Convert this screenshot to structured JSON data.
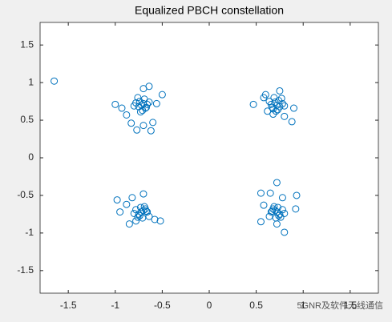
{
  "chart_data": {
    "type": "scatter",
    "title": "Equalized PBCH constellation",
    "watermark": "5GNR及软件无线通信",
    "xlim": [
      -1.8,
      1.8
    ],
    "ylim": [
      -1.8,
      1.8
    ],
    "xticks": [
      -1.5,
      -1,
      -0.5,
      0,
      0.5,
      1,
      1.5
    ],
    "yticks": [
      -1.5,
      -1,
      -0.5,
      0,
      0.5,
      1,
      1.5
    ],
    "marker": "circle-open",
    "color": "#0072bd",
    "x": [
      -0.72,
      -0.7,
      -0.75,
      -0.68,
      -0.74,
      -0.66,
      -0.78,
      -0.71,
      -0.69,
      -0.8,
      -0.64,
      -0.73,
      -0.76,
      -0.67,
      -1.0,
      -0.93,
      -0.88,
      -0.83,
      -0.77,
      -0.7,
      -0.62,
      -0.6,
      -0.64,
      -0.7,
      -0.5,
      -0.56,
      0.72,
      0.7,
      0.75,
      0.68,
      0.74,
      0.66,
      0.78,
      0.71,
      0.69,
      0.8,
      0.64,
      0.73,
      0.77,
      0.67,
      0.58,
      0.6,
      0.47,
      0.9,
      0.88,
      0.8,
      0.75,
      0.68,
      0.62,
      -0.72,
      -0.7,
      -0.75,
      -0.68,
      -0.74,
      -0.66,
      -0.78,
      -0.71,
      -0.69,
      -0.8,
      -0.64,
      -0.73,
      -0.76,
      -0.67,
      -0.98,
      -0.82,
      -0.7,
      -0.95,
      -0.85,
      -0.58,
      -0.52,
      -0.78,
      -0.88,
      0.72,
      0.7,
      0.75,
      0.68,
      0.74,
      0.66,
      0.78,
      0.71,
      0.69,
      0.8,
      0.64,
      0.73,
      0.76,
      0.67,
      0.72,
      0.65,
      0.55,
      0.93,
      0.58,
      0.55,
      0.8,
      0.72,
      0.92,
      0.78,
      -1.65
    ],
    "series": [
      {
        "values": [
          0.7,
          0.72,
          0.68,
          0.66,
          0.75,
          0.71,
          0.73,
          0.63,
          0.78,
          0.69,
          0.74,
          0.61,
          0.8,
          0.67,
          0.71,
          0.66,
          0.57,
          0.46,
          0.37,
          0.43,
          0.36,
          0.47,
          0.95,
          0.92,
          0.84,
          0.72,
          0.7,
          0.74,
          0.68,
          0.65,
          0.76,
          0.71,
          0.72,
          0.62,
          0.8,
          0.69,
          0.75,
          0.64,
          0.79,
          0.67,
          0.8,
          0.84,
          0.71,
          0.66,
          0.48,
          0.55,
          0.89,
          0.58,
          0.62,
          -0.72,
          -0.7,
          -0.75,
          -0.68,
          -0.77,
          -0.72,
          -0.69,
          -0.8,
          -0.65,
          -0.74,
          -0.78,
          -0.66,
          -0.79,
          -0.71,
          -0.56,
          -0.53,
          -0.48,
          -0.72,
          -0.88,
          -0.82,
          -0.84,
          -0.84,
          -0.62,
          -0.72,
          -0.7,
          -0.75,
          -0.68,
          -0.77,
          -0.72,
          -0.69,
          -0.8,
          -0.65,
          -0.74,
          -0.78,
          -0.66,
          -0.79,
          -0.71,
          -0.33,
          -0.47,
          -0.47,
          -0.5,
          -0.63,
          -0.85,
          -0.99,
          -0.88,
          -0.68,
          -0.53,
          1.02
        ]
      }
    ]
  }
}
